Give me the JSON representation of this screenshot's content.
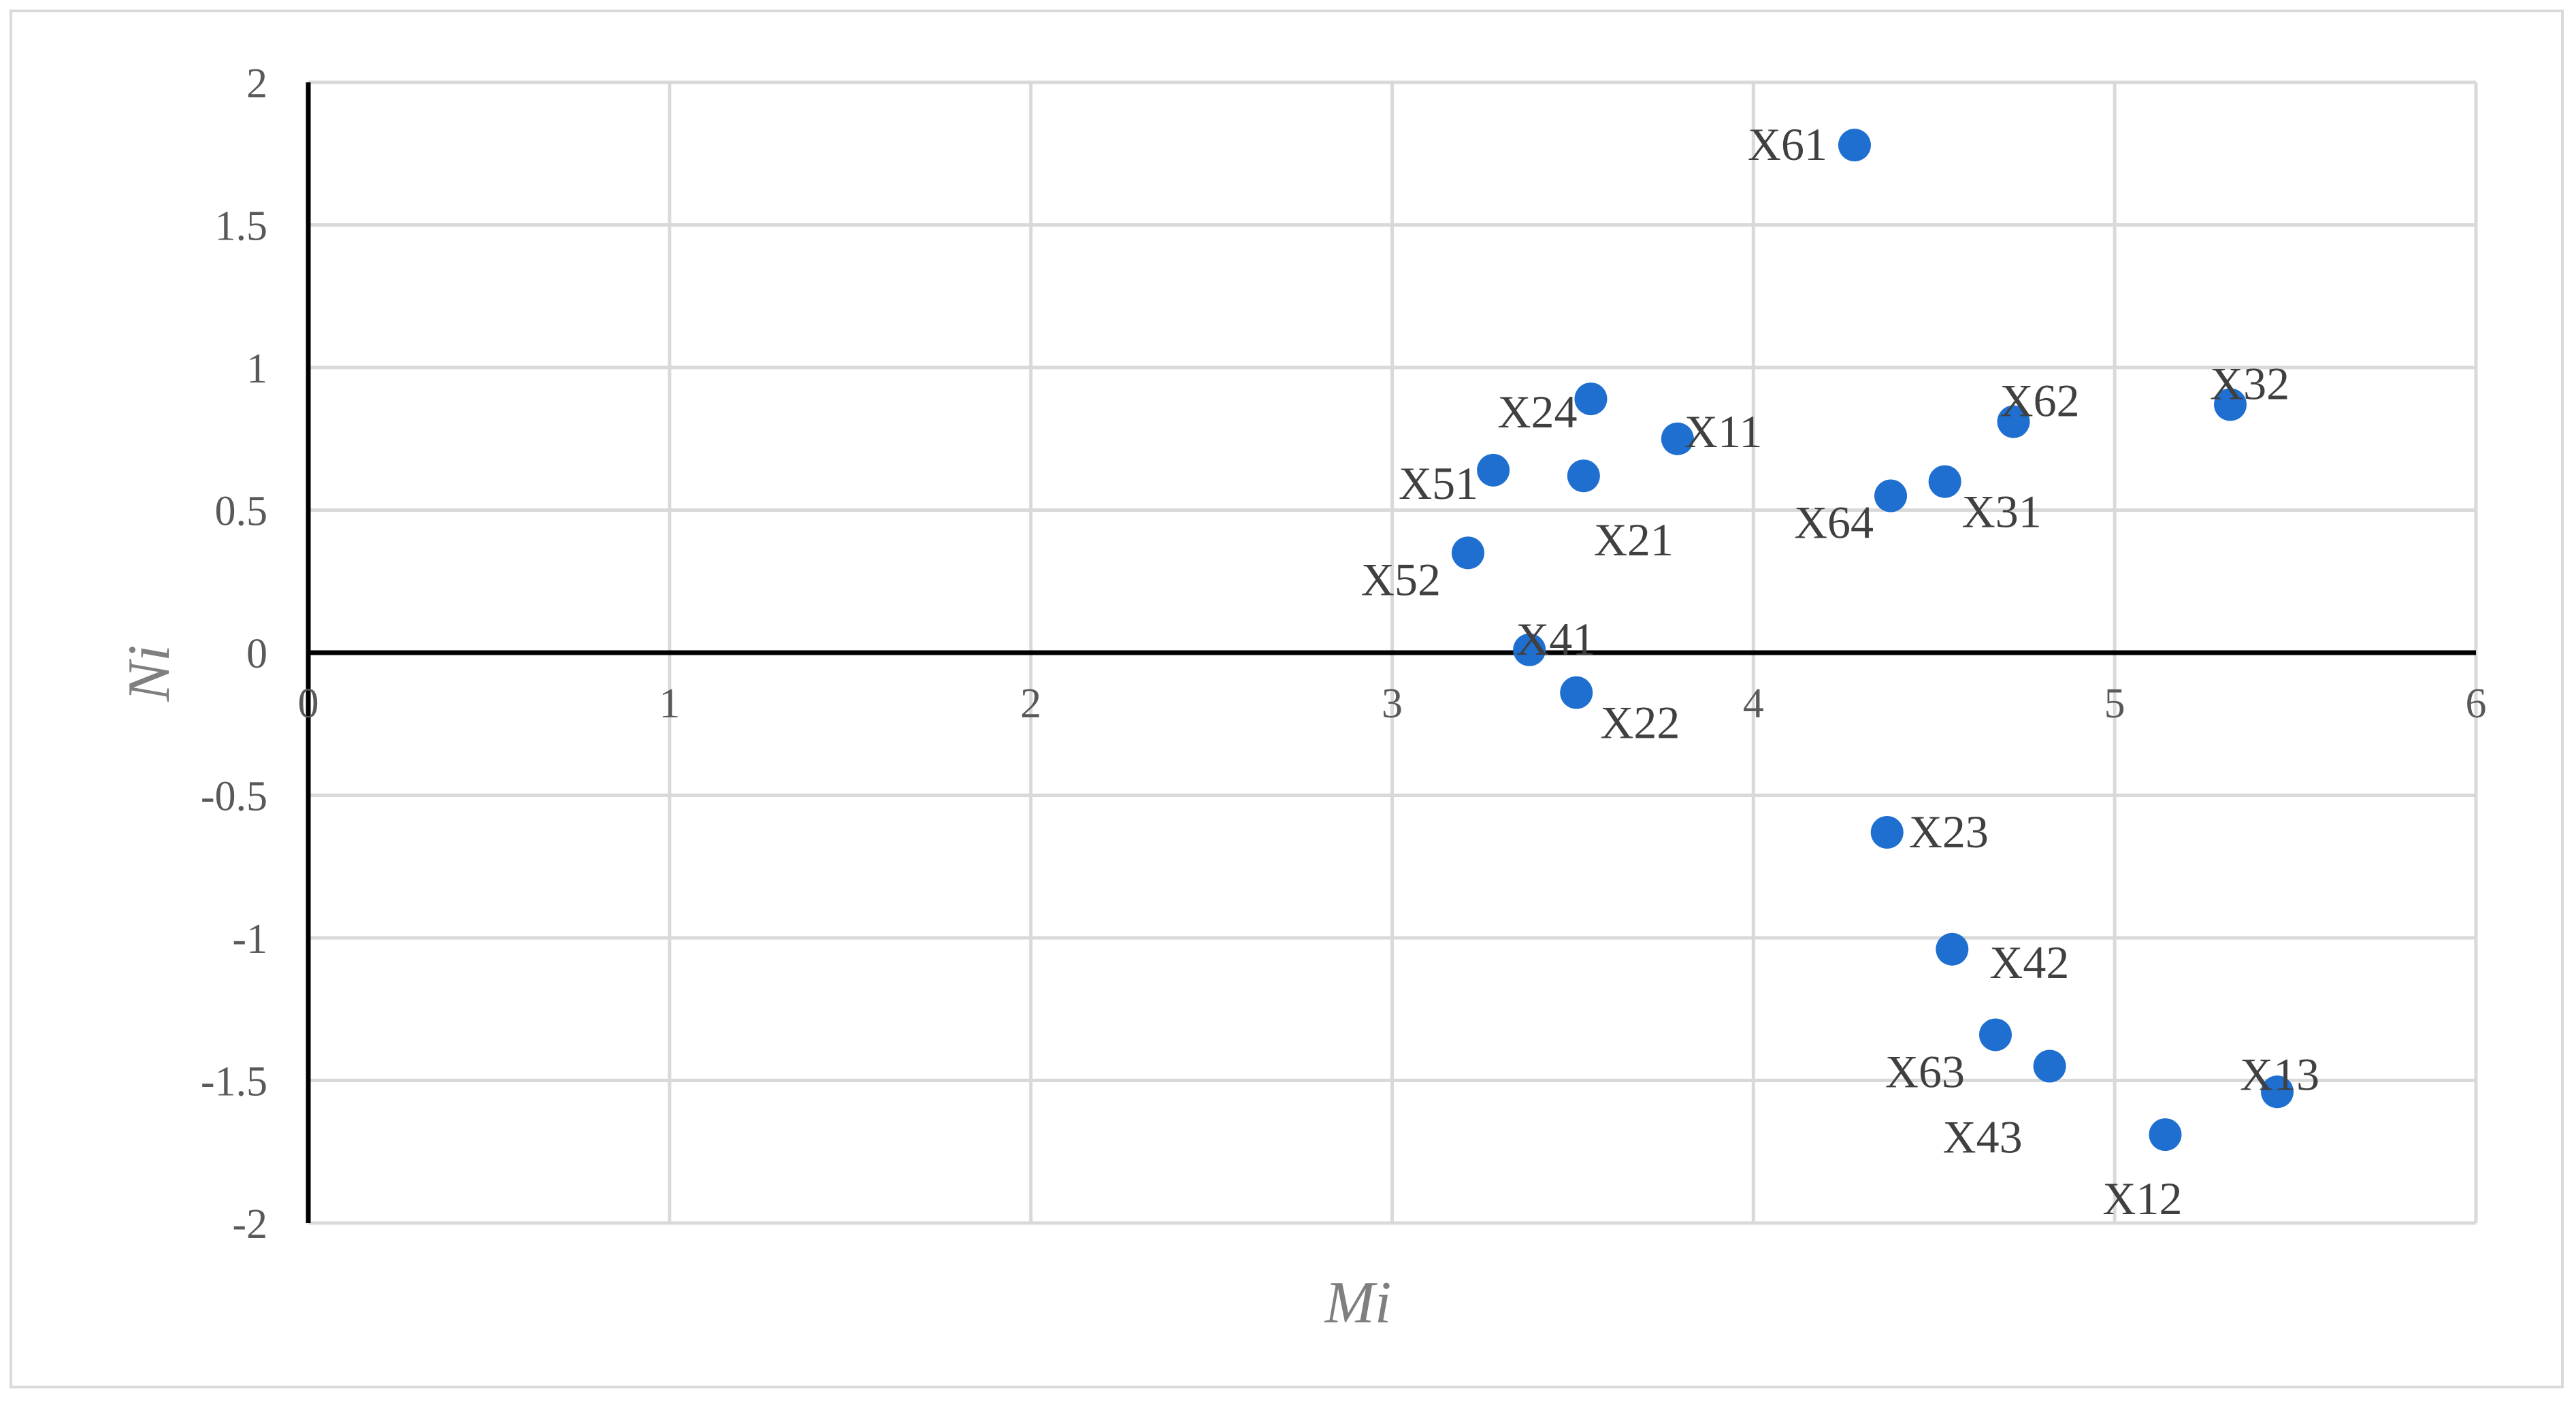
{
  "chart_data": {
    "type": "scatter",
    "title": "",
    "xlabel": "Mi",
    "ylabel": "Ni",
    "xlim": [
      0,
      6
    ],
    "ylim": [
      -2,
      2
    ],
    "x_ticks": [
      0,
      1,
      2,
      3,
      4,
      5,
      6
    ],
    "y_ticks": [
      -2,
      -1.5,
      -1,
      -0.5,
      0,
      0.5,
      1,
      1.5,
      2
    ],
    "grid": true,
    "legend": "none",
    "marker_color": "#1f6fd0",
    "gridline_color": "#d9d9d9",
    "axis_color": "#000000",
    "points": [
      {
        "label": "X61",
        "x": 4.28,
        "y": 1.78
      },
      {
        "label": "X32",
        "x": 5.32,
        "y": 0.87
      },
      {
        "label": "X62",
        "x": 4.72,
        "y": 0.81
      },
      {
        "label": "X24",
        "x": 3.55,
        "y": 0.89
      },
      {
        "label": "X11",
        "x": 3.79,
        "y": 0.75
      },
      {
        "label": "X51",
        "x": 3.28,
        "y": 0.64
      },
      {
        "label": "X21",
        "x": 3.53,
        "y": 0.62
      },
      {
        "label": "X64",
        "x": 4.38,
        "y": 0.55
      },
      {
        "label": "X31",
        "x": 4.53,
        "y": 0.6
      },
      {
        "label": "X52",
        "x": 3.21,
        "y": 0.35
      },
      {
        "label": "X41",
        "x": 3.38,
        "y": 0.01
      },
      {
        "label": "X22",
        "x": 3.51,
        "y": -0.14
      },
      {
        "label": "X23",
        "x": 4.37,
        "y": -0.63
      },
      {
        "label": "X42",
        "x": 4.55,
        "y": -1.04
      },
      {
        "label": "X63",
        "x": 4.67,
        "y": -1.34
      },
      {
        "label": "X43",
        "x": 4.82,
        "y": -1.45
      },
      {
        "label": "X13",
        "x": 5.45,
        "y": -1.54
      },
      {
        "label": "X12",
        "x": 5.14,
        "y": -1.69
      }
    ]
  }
}
